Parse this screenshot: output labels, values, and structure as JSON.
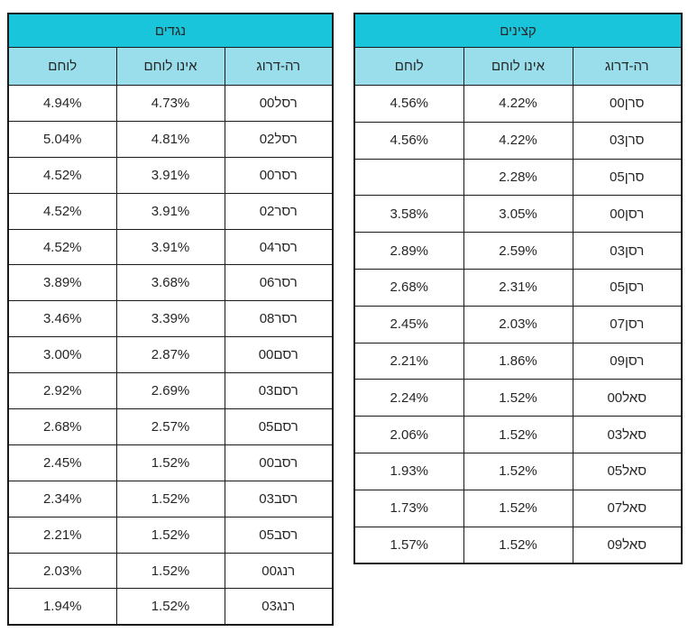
{
  "colors": {
    "title_bg": "#19C5DB",
    "header_bg": "#9ADEEC",
    "border": "#1A1A1A",
    "text": "#262626"
  },
  "tables": [
    {
      "title": "נגדים",
      "columns": [
        "רה-דרוג",
        "אינו לוחם",
        "לוחם"
      ],
      "rows": [
        {
          "rank": "רסל00",
          "non_combatant": "4.73%",
          "combatant": "4.94%"
        },
        {
          "rank": "רסל02",
          "non_combatant": "4.81%",
          "combatant": "5.04%"
        },
        {
          "rank": "רסר00",
          "non_combatant": "3.91%",
          "combatant": "4.52%"
        },
        {
          "rank": "רסר02",
          "non_combatant": "3.91%",
          "combatant": "4.52%"
        },
        {
          "rank": "רסר04",
          "non_combatant": "3.91%",
          "combatant": "4.52%"
        },
        {
          "rank": "רסר06",
          "non_combatant": "3.68%",
          "combatant": "3.89%"
        },
        {
          "rank": "רסר08",
          "non_combatant": "3.39%",
          "combatant": "3.46%"
        },
        {
          "rank": "רסם00",
          "non_combatant": "2.87%",
          "combatant": "3.00%"
        },
        {
          "rank": "רסם03",
          "non_combatant": "2.69%",
          "combatant": "2.92%"
        },
        {
          "rank": "רסם05",
          "non_combatant": "2.57%",
          "combatant": "2.68%"
        },
        {
          "rank": "רסב00",
          "non_combatant": "1.52%",
          "combatant": "2.45%"
        },
        {
          "rank": "רסב03",
          "non_combatant": "1.52%",
          "combatant": "2.34%"
        },
        {
          "rank": "רסב05",
          "non_combatant": "1.52%",
          "combatant": "2.21%"
        },
        {
          "rank": "רנג00",
          "non_combatant": "1.52%",
          "combatant": "2.03%"
        },
        {
          "rank": "רנג03",
          "non_combatant": "1.52%",
          "combatant": "1.94%"
        }
      ]
    },
    {
      "title": "קצינים",
      "columns": [
        "רה-דרוג",
        "אינו לוחם",
        "לוחם"
      ],
      "rows": [
        {
          "rank": "סרן00",
          "non_combatant": "4.22%",
          "combatant": "4.56%"
        },
        {
          "rank": "סרן03",
          "non_combatant": "4.22%",
          "combatant": "4.56%"
        },
        {
          "rank": "סרן05",
          "non_combatant": "2.28%",
          "combatant": ""
        },
        {
          "rank": "רסן00",
          "non_combatant": "3.05%",
          "combatant": "3.58%"
        },
        {
          "rank": "רסן03",
          "non_combatant": "2.59%",
          "combatant": "2.89%"
        },
        {
          "rank": "רסן05",
          "non_combatant": "2.31%",
          "combatant": "2.68%"
        },
        {
          "rank": "רסן07",
          "non_combatant": "2.03%",
          "combatant": "2.45%"
        },
        {
          "rank": "רסן09",
          "non_combatant": "1.86%",
          "combatant": "2.21%"
        },
        {
          "rank": "סאל00",
          "non_combatant": "1.52%",
          "combatant": "2.24%"
        },
        {
          "rank": "סאל03",
          "non_combatant": "1.52%",
          "combatant": "2.06%"
        },
        {
          "rank": "סאל05",
          "non_combatant": "1.52%",
          "combatant": "1.93%"
        },
        {
          "rank": "סאל07",
          "non_combatant": "1.52%",
          "combatant": "1.73%"
        },
        {
          "rank": "סאל09",
          "non_combatant": "1.52%",
          "combatant": "1.57%"
        }
      ]
    }
  ]
}
